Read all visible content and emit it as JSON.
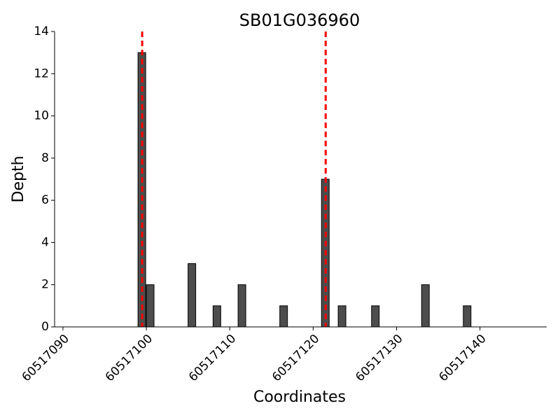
{
  "chart_data": {
    "type": "bar",
    "title": "SB01G036960",
    "xlabel": "Coordinates",
    "ylabel": "Depth",
    "x": [
      60517099,
      60517100,
      60517105,
      60517108,
      60517111,
      60517116,
      60517121,
      60517123,
      60517127,
      60517133,
      60517138
    ],
    "values": [
      13,
      2,
      3,
      1,
      2,
      1,
      7,
      1,
      1,
      2,
      1
    ],
    "color": "#4d4d4d",
    "markers": [
      60517099.5,
      60517121.5
    ],
    "marker_color": "#ff0000",
    "xlim": [
      60517089,
      60517148
    ],
    "xticks": [
      60517090,
      60517100,
      60517110,
      60517120,
      60517130,
      60517140
    ],
    "ylim": [
      0,
      14
    ],
    "yticks": [
      0,
      2,
      4,
      6,
      8,
      10,
      12,
      14
    ],
    "grid": false
  }
}
